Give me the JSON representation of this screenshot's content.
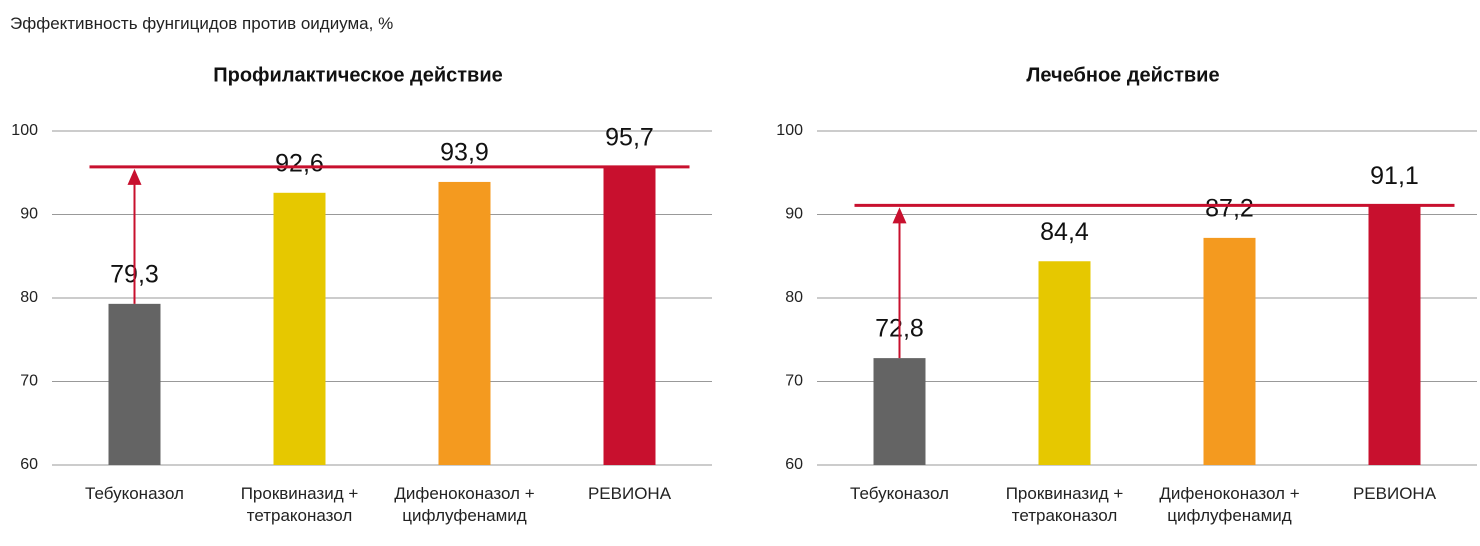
{
  "header": {
    "title": "Эффективность фунгицидов против оидиума, %"
  },
  "chart_data": [
    {
      "type": "bar",
      "title": "Профилактическое действие",
      "categories": [
        "Тебуконазол",
        "Проквиназид +\nтетраконазол",
        "Дифеноконазол +\nцифлуфенамид",
        "РЕВИОНА"
      ],
      "values": [
        79.3,
        92.6,
        93.9,
        95.7
      ],
      "value_labels": [
        "79,3",
        "92,6",
        "93,9",
        "95,7"
      ],
      "colors": [
        "#646464",
        "#e6c800",
        "#f49a1f",
        "#c8102e"
      ],
      "ylim": [
        60,
        100
      ],
      "yticks": [
        60,
        70,
        80,
        90,
        100
      ],
      "grid": true
    },
    {
      "type": "bar",
      "title": "Лечебное действие",
      "categories": [
        "Тебуконазол",
        "Проквиназид +\nтетраконазол",
        "Дифеноконазол +\nцифлуфенамид",
        "РЕВИОНА"
      ],
      "values": [
        72.8,
        84.4,
        87.2,
        91.1
      ],
      "value_labels": [
        "72,8",
        "84,4",
        "87,2",
        "91,1"
      ],
      "colors": [
        "#646464",
        "#e6c800",
        "#f49a1f",
        "#c8102e"
      ],
      "ylim": [
        60,
        100
      ],
      "yticks": [
        60,
        70,
        80,
        90,
        100
      ],
      "grid": true
    }
  ]
}
